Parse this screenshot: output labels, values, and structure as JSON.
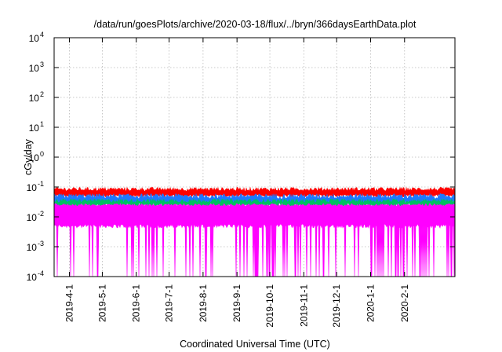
{
  "chart_data": {
    "type": "line",
    "title": "/data/run/goesPlots/archive/2020-03-18/flux/../bryn/366daysEarthData.plot",
    "xlabel": "Coordinated Universal Time (UTC)",
    "ylabel": "cGy/day",
    "yscale": "log",
    "ylim": [
      0.0001,
      10000
    ],
    "xlim": [
      "2019-03-18",
      "2020-03-18"
    ],
    "y_ticks": [
      {
        "base": "10",
        "exp": "-4",
        "value": 0.0001
      },
      {
        "base": "10",
        "exp": "-3",
        "value": 0.001
      },
      {
        "base": "10",
        "exp": "-2",
        "value": 0.01
      },
      {
        "base": "10",
        "exp": "-1",
        "value": 0.1
      },
      {
        "base": "10",
        "exp": "0",
        "value": 1
      },
      {
        "base": "10",
        "exp": "1",
        "value": 10
      },
      {
        "base": "10",
        "exp": "2",
        "value": 100
      },
      {
        "base": "10",
        "exp": "3",
        "value": 1000
      },
      {
        "base": "10",
        "exp": "4",
        "value": 10000
      }
    ],
    "x_ticks": [
      {
        "label": "2019-4-1",
        "date": "2019-04-01"
      },
      {
        "label": "2019-5-1",
        "date": "2019-05-01"
      },
      {
        "label": "2019-6-1",
        "date": "2019-06-01"
      },
      {
        "label": "2019-7-1",
        "date": "2019-07-01"
      },
      {
        "label": "2019-8-1",
        "date": "2019-08-01"
      },
      {
        "label": "2019-9-1",
        "date": "2019-09-01"
      },
      {
        "label": "2019-10-1",
        "date": "2019-10-01"
      },
      {
        "label": "2019-11-1",
        "date": "2019-11-01"
      },
      {
        "label": "2019-12-1",
        "date": "2019-12-01"
      },
      {
        "label": "2020-1-1",
        "date": "2020-01-01"
      },
      {
        "label": "2020-2-1",
        "date": "2020-02-01"
      }
    ],
    "grid": true,
    "series": [
      {
        "color": "#ff00ff",
        "typical_value": 0.03,
        "low_value": 0.005,
        "dropout_value": 0.0001
      },
      {
        "color": "#00c060",
        "typical_value": 0.035
      },
      {
        "color": "#1e78ff",
        "typical_value": 0.05
      },
      {
        "color": "#ff0000",
        "typical_value": 0.085
      }
    ]
  }
}
